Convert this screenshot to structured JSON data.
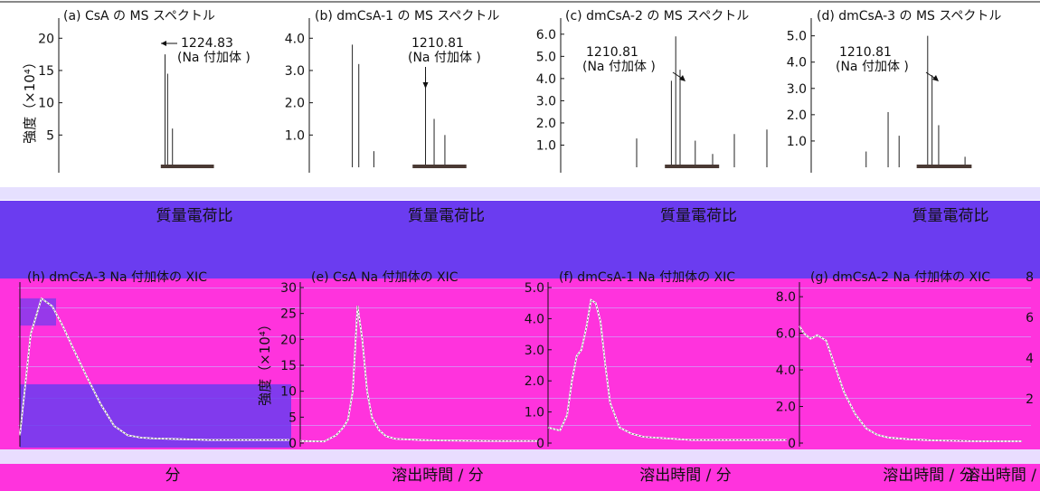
{
  "colors": {
    "background_top": "#ffffff",
    "band": "#6b3cf0",
    "panel_bottom": "#ff33dd",
    "stripe_light": "#c8b8ff",
    "ink": "#111111",
    "trace": "#d8d0f8",
    "bar_dark": "#4a3a34"
  },
  "chart_data": [
    {
      "id": "a",
      "type": "bar",
      "title": "(a) CsA の MS スペクトル",
      "xlabel": "質量電荷比",
      "ylabel": "強度（×10⁴）",
      "yticks": [
        5,
        10,
        15,
        20
      ],
      "ylim": [
        0,
        22
      ],
      "xlim": [
        0,
        100
      ],
      "annotation": {
        "line1": "1224.83",
        "line2": "(Na 付加体 )",
        "arrow": "left"
      },
      "peaks": [
        [
          50,
          17.5
        ],
        [
          51.2,
          14.5
        ],
        [
          53.5,
          6
        ]
      ]
    },
    {
      "id": "b",
      "type": "bar",
      "title": "(b) dmCsA-1 の MS スペクトル",
      "xlabel": "質量電荷比",
      "yticks": [
        1.0,
        2.0,
        3.0,
        4.0
      ],
      "ylim": [
        0,
        4.4
      ],
      "xlim": [
        0,
        100
      ],
      "annotation": {
        "line1": "1210.81",
        "line2": "(Na 付加体 )",
        "arrow": "down"
      },
      "peaks": [
        [
          20,
          3.8
        ],
        [
          23,
          3.2
        ],
        [
          54,
          2.8
        ],
        [
          58,
          1.5
        ],
        [
          63,
          1.0
        ],
        [
          30,
          0.5
        ]
      ]
    },
    {
      "id": "c",
      "type": "bar",
      "title": "(c) dmCsA-2 の MS スペクトル",
      "xlabel": "質量電荷比",
      "yticks": [
        1.0,
        2.0,
        3.0,
        4.0,
        5.0,
        6.0
      ],
      "ylim": [
        0,
        6.4
      ],
      "xlim": [
        0,
        100
      ],
      "annotation": {
        "line1": "1210.81",
        "line2": "(Na 付加体 )",
        "arrow": "down-right"
      },
      "peaks": [
        [
          53,
          5.9
        ],
        [
          55,
          4.4
        ],
        [
          51,
          3.9
        ],
        [
          62,
          1.2
        ],
        [
          35,
          1.3
        ],
        [
          70,
          0.6
        ],
        [
          80,
          1.5
        ],
        [
          95,
          1.7
        ]
      ]
    },
    {
      "id": "d",
      "type": "bar",
      "title": "(d) dmCsA-3 の MS スペクトル",
      "xlabel": "質量電荷比",
      "yticks": [
        1.0,
        2.0,
        3.0,
        4.0,
        5.0
      ],
      "ylim": [
        0,
        5.4
      ],
      "xlim": [
        0,
        100
      ],
      "annotation": {
        "line1": "1210.81",
        "line2": "(Na 付加体 )",
        "arrow": "down-right"
      },
      "peaks": [
        [
          53,
          5.0
        ],
        [
          55,
          3.5
        ],
        [
          58,
          1.6
        ],
        [
          35,
          2.1
        ],
        [
          40,
          1.2
        ],
        [
          25,
          0.6
        ],
        [
          70,
          0.4
        ]
      ]
    },
    {
      "id": "h",
      "type": "line",
      "title": "(h) dmCsA-3 Na 付加体の XIC",
      "xlabel": "分",
      "yticks": [],
      "ylim": [
        0,
        10
      ],
      "xlim": [
        0,
        100
      ],
      "x": [
        0,
        4,
        8,
        12,
        16,
        20,
        25,
        30,
        35,
        40,
        45,
        50,
        60,
        70,
        80,
        100
      ],
      "y": [
        0.5,
        7.0,
        9.3,
        8.8,
        7.5,
        6.0,
        4.2,
        2.5,
        1.1,
        0.5,
        0.35,
        0.3,
        0.25,
        0.2,
        0.2,
        0.2
      ]
    },
    {
      "id": "e",
      "type": "line",
      "title": "(e) CsA Na 付加体の XIC",
      "xlabel": "溶出時間 / 分",
      "ylabel": "強度（×10⁴）",
      "yticks": [
        0,
        5,
        10,
        15,
        20,
        25,
        30
      ],
      "ylim": [
        0,
        30
      ],
      "xlim": [
        0,
        100
      ],
      "x": [
        0,
        10,
        15,
        18,
        20,
        22,
        24,
        26,
        28,
        30,
        33,
        36,
        40,
        50,
        60,
        80,
        100
      ],
      "y": [
        0.4,
        0.3,
        1.5,
        3.0,
        4.5,
        10,
        26.5,
        20,
        10,
        5,
        2.5,
        1.3,
        0.8,
        0.6,
        0.5,
        0.4,
        0.4
      ]
    },
    {
      "id": "f",
      "type": "line",
      "title": "(f) dmCsA-1 Na 付加体の XIC",
      "xlabel": "溶出時間 / 分",
      "yticks": [
        0,
        1.0,
        2.0,
        3.0,
        4.0,
        5.0
      ],
      "ylim": [
        0,
        5.0
      ],
      "xlim": [
        0,
        100
      ],
      "x": [
        0,
        5,
        8,
        10,
        12,
        14,
        16,
        18,
        20,
        22,
        24,
        26,
        30,
        35,
        40,
        50,
        60,
        80,
        100
      ],
      "y": [
        0.5,
        0.4,
        0.9,
        2.0,
        2.8,
        3.0,
        3.7,
        4.6,
        4.5,
        3.9,
        2.5,
        1.3,
        0.5,
        0.3,
        0.2,
        0.15,
        0.1,
        0.1,
        0.1
      ]
    },
    {
      "id": "g",
      "type": "line",
      "title": "(g) dmCsA-2 Na 付加体の XIC",
      "xlabel": "溶出時間 / 分",
      "yticks": [
        0,
        2.0,
        4.0,
        6.0,
        8.0
      ],
      "ylim": [
        0,
        8.5
      ],
      "xlim": [
        0,
        100
      ],
      "right_ticks": [
        "8",
        "6",
        "4",
        "2"
      ],
      "right_xlabel": "溶出時間 /",
      "x": [
        0,
        2,
        5,
        8,
        12,
        16,
        20,
        25,
        30,
        35,
        40,
        50,
        60,
        80,
        100
      ],
      "y": [
        6.4,
        6.0,
        5.7,
        5.9,
        5.6,
        4.2,
        2.8,
        1.6,
        0.8,
        0.45,
        0.3,
        0.2,
        0.15,
        0.1,
        0.1
      ]
    }
  ]
}
